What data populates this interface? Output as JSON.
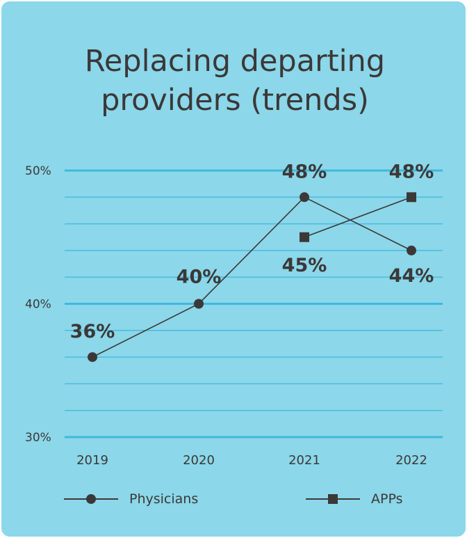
{
  "chart_data": {
    "type": "line",
    "title": "Replacing departing providers (trends)",
    "title_lines": [
      "Replacing departing",
      "providers (trends)"
    ],
    "categories": [
      "2019",
      "2020",
      "2021",
      "2022"
    ],
    "ylim": [
      30,
      50
    ],
    "y_ticks": [
      30,
      40,
      50
    ],
    "y_tick_labels": [
      "30%",
      "40%",
      "50%"
    ],
    "grid": true,
    "legend_position": "bottom",
    "series": [
      {
        "name": "Physicians",
        "marker": "circle",
        "values": [
          36,
          40,
          48,
          44
        ],
        "labels": [
          "36%",
          "40%",
          "48%",
          "44%"
        ]
      },
      {
        "name": "APPs",
        "marker": "square",
        "values": [
          null,
          null,
          45,
          48
        ],
        "labels": [
          null,
          null,
          "45%",
          "48%"
        ]
      }
    ],
    "colors": {
      "background": "#8cd7e9",
      "grid": "#3fb8df",
      "line": "#3b3838"
    }
  }
}
